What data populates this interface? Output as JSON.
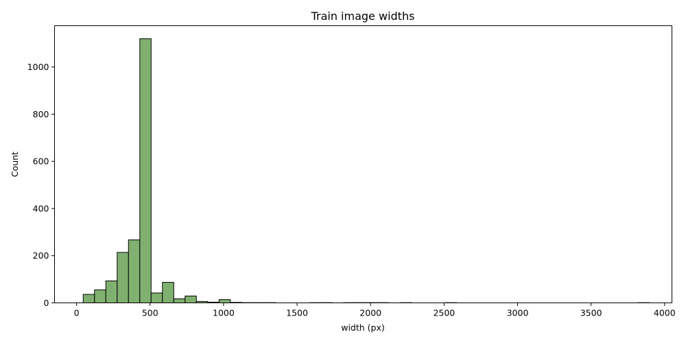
{
  "chart_data": {
    "type": "bar",
    "title": "Train image widths",
    "xlabel": "width (px)",
    "ylabel": "Count",
    "xlim": [
      -150,
      4050
    ],
    "ylim": [
      0,
      1175
    ],
    "xticks": [
      0,
      500,
      1000,
      1500,
      2000,
      2500,
      3000,
      3500,
      4000
    ],
    "yticks": [
      0,
      200,
      400,
      600,
      800,
      1000
    ],
    "grid": false,
    "bar_color": "#80b070",
    "bar_edge_color": "#000000",
    "bin_width": 77,
    "bins": [
      {
        "x0": 45,
        "count": 36
      },
      {
        "x0": 122,
        "count": 55
      },
      {
        "x0": 199,
        "count": 93
      },
      {
        "x0": 276,
        "count": 214
      },
      {
        "x0": 353,
        "count": 267
      },
      {
        "x0": 430,
        "count": 1120
      },
      {
        "x0": 507,
        "count": 42
      },
      {
        "x0": 584,
        "count": 87
      },
      {
        "x0": 661,
        "count": 17
      },
      {
        "x0": 738,
        "count": 29
      },
      {
        "x0": 815,
        "count": 6
      },
      {
        "x0": 892,
        "count": 3
      },
      {
        "x0": 969,
        "count": 14
      },
      {
        "x0": 1046,
        "count": 2
      },
      {
        "x0": 1123,
        "count": 1
      },
      {
        "x0": 1200,
        "count": 1
      },
      {
        "x0": 1277,
        "count": 1
      },
      {
        "x0": 1585,
        "count": 1
      },
      {
        "x0": 1662,
        "count": 1
      },
      {
        "x0": 1816,
        "count": 1
      },
      {
        "x0": 1893,
        "count": 1
      },
      {
        "x0": 1970,
        "count": 1
      },
      {
        "x0": 2047,
        "count": 1
      },
      {
        "x0": 2201,
        "count": 1
      },
      {
        "x0": 2509,
        "count": 1
      },
      {
        "x0": 3818,
        "count": 1
      }
    ]
  }
}
